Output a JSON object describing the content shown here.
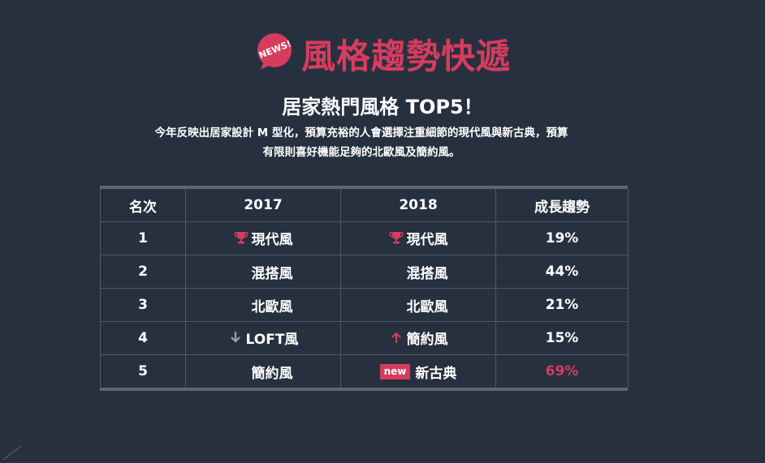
{
  "header": {
    "badge_text": "NEWS!",
    "title": "風格趨勢快遞"
  },
  "subtitle": "居家熱門風格 TOP5！",
  "description": {
    "line1": "今年反映出居家設計 M 型化，預算充裕的人會選擇注重細節的現代風與新古典，預算",
    "line2": "有限則喜好機能足夠的北歐風及簡約風。"
  },
  "colors": {
    "background": "#27303f",
    "accent": "#d63c5e",
    "text": "#ffffff",
    "down_arrow": "#9aa1ab"
  },
  "table": {
    "headers": [
      "名次",
      "2017",
      "2018",
      "成長趨勢"
    ],
    "rows": [
      {
        "rank": "1",
        "y2017": "現代風",
        "y2017_icon": "trophy-icon",
        "y2018": "現代風",
        "y2018_icon": "trophy-icon",
        "trend": "19%"
      },
      {
        "rank": "2",
        "y2017": "混搭風",
        "y2017_icon": "",
        "y2018": "混搭風",
        "y2018_icon": "",
        "trend": "44%"
      },
      {
        "rank": "3",
        "y2017": "北歐風",
        "y2017_icon": "",
        "y2018": "北歐風",
        "y2018_icon": "",
        "trend": "21%"
      },
      {
        "rank": "4",
        "y2017": "LOFT風",
        "y2017_icon": "arrow-down-icon",
        "y2018": "簡約風",
        "y2018_icon": "arrow-up-icon",
        "trend": "15%"
      },
      {
        "rank": "5",
        "y2017": "簡約風",
        "y2017_icon": "",
        "y2018": "新古典",
        "y2018_icon": "new-tag",
        "y2018_tag": "new",
        "trend": "69%",
        "trend_highlight": true
      }
    ]
  }
}
